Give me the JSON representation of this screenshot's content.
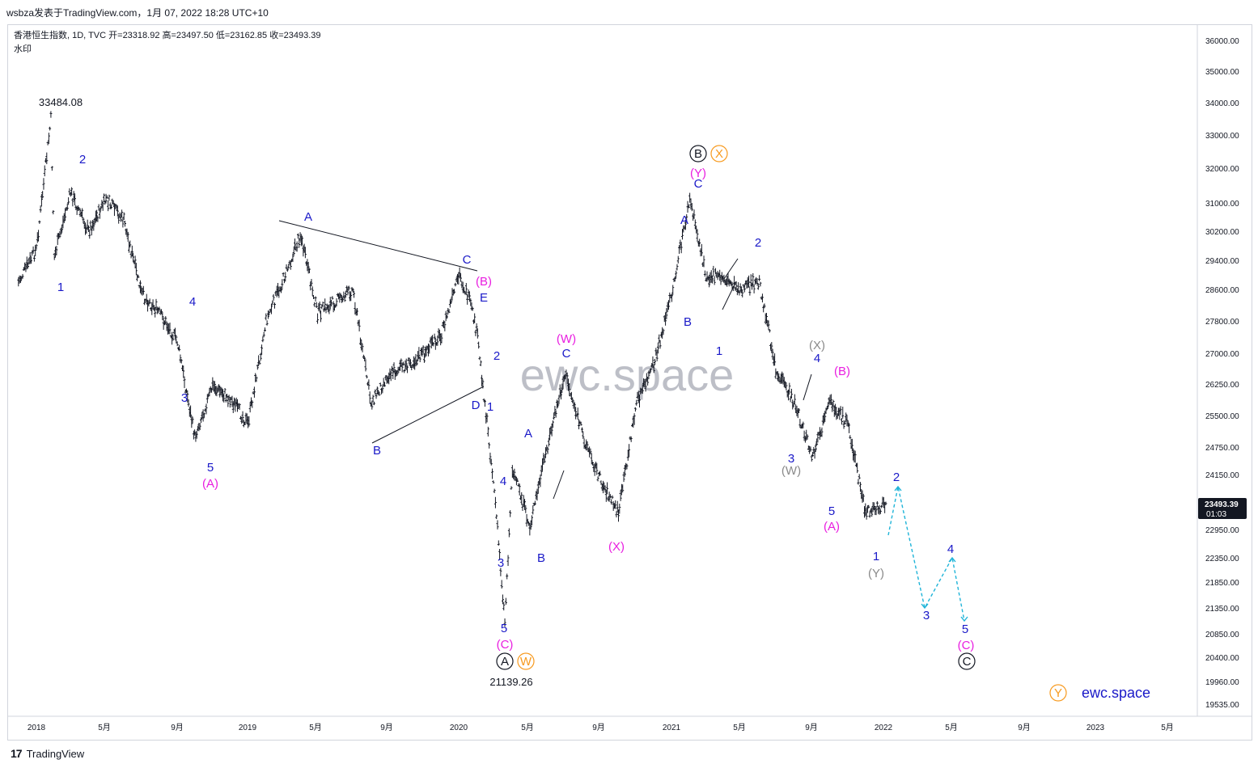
{
  "header": {
    "top_text": "wsbza发表于TradingView.com，1月 07, 2022 18:28 UTC+10",
    "legend": "香港恒生指数, 1D, TVC  开=23318.92  高=23497.50  低=23162.85  收=23493.39",
    "legend2": "水印"
  },
  "footer": {
    "logo": "17",
    "brand": "TradingView"
  },
  "colors": {
    "candle": "#131722",
    "wave_blue": "#1a19c8",
    "wave_magenta": "#e91ee0",
    "wave_gray": "#8a8a8a",
    "wave_orange": "#f79a1f",
    "projection": "#1fb4d8"
  },
  "chart_data": {
    "type": "ohlc",
    "title": "香港恒生指数, 1D, TVC",
    "ohlc_last": {
      "open": 23318.92,
      "high": 23497.5,
      "low": 23162.85,
      "close": 23493.39
    },
    "y_axis": {
      "ticks": [
        "36000.00",
        "35000.00",
        "34000.00",
        "33000.00",
        "32000.00",
        "31000.00",
        "30200.00",
        "29400.00",
        "28600.00",
        "27800.00",
        "27000.00",
        "26250.00",
        "25500.00",
        "24750.00",
        "24150.00",
        "23493.39",
        "22950.00",
        "22350.00",
        "21850.00",
        "21350.00",
        "20850.00",
        "20400.00",
        "19960.00",
        "19535.00"
      ],
      "last_price": "23493.39",
      "last_time": "01:03"
    },
    "x_axis": {
      "ticks": [
        "2018",
        "5月",
        "9月",
        "2019",
        "5月",
        "9月",
        "2020",
        "5月",
        "9月",
        "2021",
        "5月",
        "9月",
        "2022",
        "5月",
        "9月",
        "2023",
        "5月"
      ]
    },
    "price_path": [
      {
        "t": "2017-12",
        "v": 28800
      },
      {
        "t": "2018-01",
        "v": 29700
      },
      {
        "t": "2018-01-26",
        "v": 33484
      },
      {
        "t": "2018-02",
        "v": 29500
      },
      {
        "t": "2018-03",
        "v": 31300
      },
      {
        "t": "2018-04",
        "v": 30200
      },
      {
        "t": "2018-05",
        "v": 31100
      },
      {
        "t": "2018-06",
        "v": 30500
      },
      {
        "t": "2018-07",
        "v": 28500
      },
      {
        "t": "2018-08",
        "v": 28000
      },
      {
        "t": "2018-09",
        "v": 27300
      },
      {
        "t": "2018-10",
        "v": 25000
      },
      {
        "t": "2018-11",
        "v": 26200
      },
      {
        "t": "2018-12",
        "v": 25900
      },
      {
        "t": "2019-01",
        "v": 25300
      },
      {
        "t": "2019-02",
        "v": 27800
      },
      {
        "t": "2019-03",
        "v": 28800
      },
      {
        "t": "2019-04",
        "v": 30100
      },
      {
        "t": "2019-05",
        "v": 28000
      },
      {
        "t": "2019-06",
        "v": 28300
      },
      {
        "t": "2019-07",
        "v": 28600
      },
      {
        "t": "2019-08",
        "v": 25800
      },
      {
        "t": "2019-09",
        "v": 26500
      },
      {
        "t": "2019-10",
        "v": 26700
      },
      {
        "t": "2019-11",
        "v": 27000
      },
      {
        "t": "2019-12",
        "v": 27500
      },
      {
        "t": "2020-01",
        "v": 29000
      },
      {
        "t": "2020-01-20",
        "v": 28200
      },
      {
        "t": "2020-02",
        "v": 27400
      },
      {
        "t": "2020-03",
        "v": 23800
      },
      {
        "t": "2020-03-19",
        "v": 21139
      },
      {
        "t": "2020-04",
        "v": 24300
      },
      {
        "t": "2020-05",
        "v": 23000
      },
      {
        "t": "2020-06",
        "v": 24800
      },
      {
        "t": "2020-07",
        "v": 26500
      },
      {
        "t": "2020-08",
        "v": 25000
      },
      {
        "t": "2020-09",
        "v": 24000
      },
      {
        "t": "2020-10",
        "v": 23300
      },
      {
        "t": "2020-11",
        "v": 25800
      },
      {
        "t": "2020-12",
        "v": 26700
      },
      {
        "t": "2021-01",
        "v": 28500
      },
      {
        "t": "2021-02",
        "v": 31100
      },
      {
        "t": "2021-03",
        "v": 29000
      },
      {
        "t": "2021-04",
        "v": 28900
      },
      {
        "t": "2021-05",
        "v": 28600
      },
      {
        "t": "2021-06",
        "v": 28800
      },
      {
        "t": "2021-07",
        "v": 26500
      },
      {
        "t": "2021-08",
        "v": 25800
      },
      {
        "t": "2021-09",
        "v": 24500
      },
      {
        "t": "2021-10",
        "v": 25800
      },
      {
        "t": "2021-11",
        "v": 25300
      },
      {
        "t": "2021-12",
        "v": 23300
      },
      {
        "t": "2022-01-07",
        "v": 23493
      }
    ],
    "annotations": {
      "price_labels": [
        "33484.08",
        "21139.26"
      ],
      "waves": [
        {
          "text": "1",
          "color": "wave_blue"
        },
        {
          "text": "2",
          "color": "wave_blue"
        },
        {
          "text": "3",
          "color": "wave_blue"
        },
        {
          "text": "4",
          "color": "wave_blue"
        },
        {
          "text": "5",
          "color": "wave_blue"
        },
        {
          "text": "(A)",
          "color": "wave_magenta"
        },
        {
          "text": "A",
          "color": "wave_blue"
        },
        {
          "text": "B",
          "color": "wave_blue"
        },
        {
          "text": "C",
          "color": "wave_blue"
        },
        {
          "text": "D",
          "color": "wave_blue"
        },
        {
          "text": "E",
          "color": "wave_blue"
        },
        {
          "text": "(B)",
          "color": "wave_magenta"
        },
        {
          "text": "1",
          "color": "wave_blue"
        },
        {
          "text": "2",
          "color": "wave_blue"
        },
        {
          "text": "3",
          "color": "wave_blue"
        },
        {
          "text": "4",
          "color": "wave_blue"
        },
        {
          "text": "5",
          "color": "wave_blue"
        },
        {
          "text": "(C)",
          "color": "wave_magenta"
        },
        {
          "text": "A",
          "color": "wave_blue"
        },
        {
          "text": "B",
          "color": "wave_blue"
        },
        {
          "text": "C",
          "color": "wave_blue"
        },
        {
          "text": "(W)",
          "color": "wave_magenta"
        },
        {
          "text": "(X)",
          "color": "wave_magenta"
        },
        {
          "text": "A",
          "color": "wave_blue"
        },
        {
          "text": "B",
          "color": "wave_blue"
        },
        {
          "text": "C",
          "color": "wave_blue"
        },
        {
          "text": "(Y)",
          "color": "wave_magenta"
        },
        {
          "text": "1",
          "color": "wave_blue"
        },
        {
          "text": "2",
          "color": "wave_blue"
        },
        {
          "text": "3",
          "color": "wave_blue"
        },
        {
          "text": "(W)",
          "color": "wave_gray"
        },
        {
          "text": "(X)",
          "color": "wave_gray"
        },
        {
          "text": "4",
          "color": "wave_blue"
        },
        {
          "text": "(B)",
          "color": "wave_magenta"
        },
        {
          "text": "5",
          "color": "wave_blue"
        },
        {
          "text": "(A)",
          "color": "wave_magenta"
        },
        {
          "text": "1",
          "color": "wave_blue"
        },
        {
          "text": "(Y)",
          "color": "wave_gray"
        },
        {
          "text": "2",
          "color": "wave_blue"
        },
        {
          "text": "3",
          "color": "wave_blue"
        },
        {
          "text": "4",
          "color": "wave_blue"
        },
        {
          "text": "5",
          "color": "wave_blue"
        },
        {
          "text": "(C)",
          "color": "wave_magenta"
        }
      ],
      "circled": [
        {
          "text": "A",
          "color": "#131722"
        },
        {
          "text": "W",
          "color": "wave_orange"
        },
        {
          "text": "B",
          "color": "#131722"
        },
        {
          "text": "X",
          "color": "wave_orange"
        },
        {
          "text": "C",
          "color": "#131722"
        },
        {
          "text": "Y",
          "color": "wave_orange"
        }
      ],
      "watermark": "ewc.space",
      "brand_label": "ewc.space"
    }
  }
}
